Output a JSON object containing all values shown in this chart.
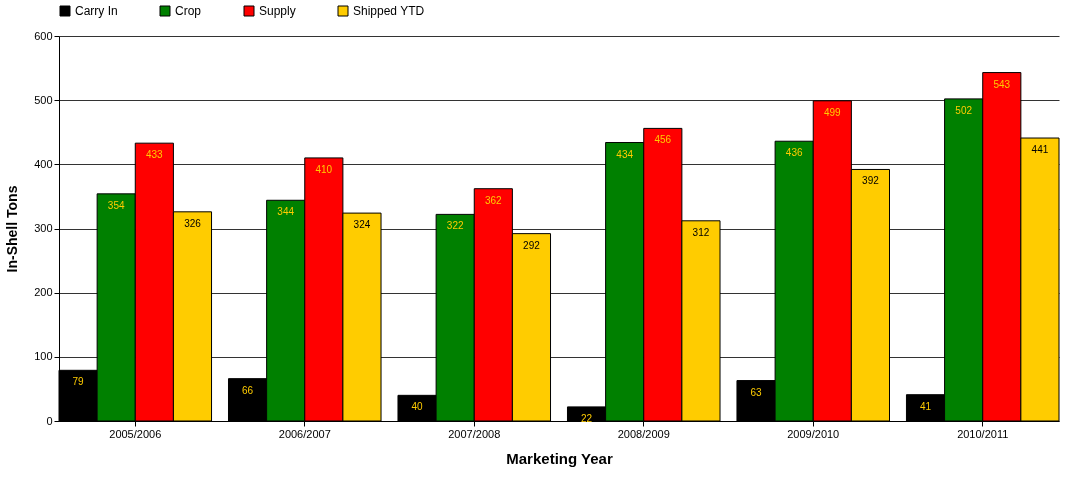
{
  "chart_data": {
    "type": "bar",
    "xlabel": "Marketing Year",
    "ylabel": "In-Shell Tons",
    "categories": [
      "2005/2006",
      "2006/2007",
      "2007/2008",
      "2008/2009",
      "2009/2010",
      "2010/2011"
    ],
    "series": [
      {
        "name": "Carry In",
        "color": "#000000",
        "values": [
          79,
          66,
          40,
          22,
          63,
          41
        ]
      },
      {
        "name": "Crop",
        "color": "#008000",
        "values": [
          354,
          344,
          322,
          434,
          436,
          502
        ]
      },
      {
        "name": "Supply",
        "color": "#ff0000",
        "values": [
          433,
          410,
          362,
          456,
          499,
          543
        ]
      },
      {
        "name": "Shipped YTD",
        "color": "#ffcc00",
        "values": [
          326,
          324,
          292,
          312,
          392,
          441
        ]
      }
    ],
    "ylim": [
      0,
      600
    ],
    "yticks": [
      0,
      100,
      200,
      300,
      400,
      500,
      600
    ],
    "grid": "y",
    "legend": "top",
    "data_labels": true
  }
}
